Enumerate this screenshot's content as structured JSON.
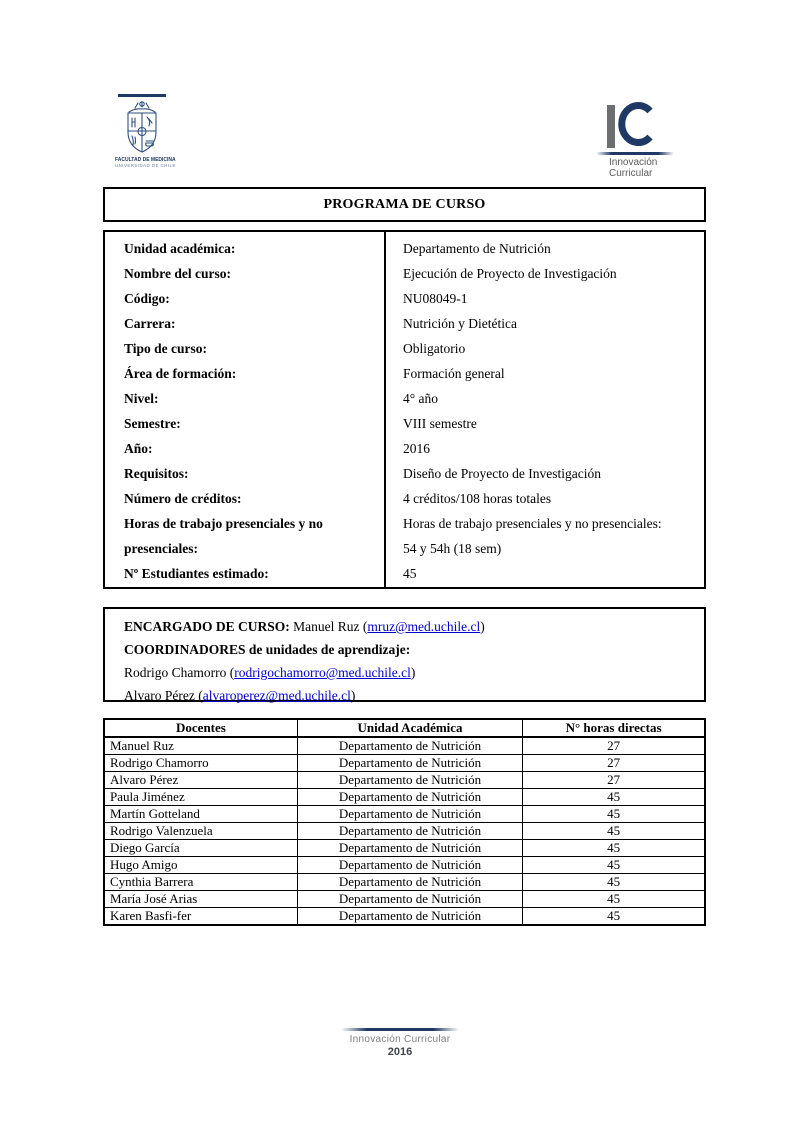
{
  "header": {
    "left_logo": {
      "name": "FACULTAD DE MEDICINA",
      "subname": "UNIVERSIDAD DE CHILE"
    },
    "right_logo": {
      "initial_i": "I",
      "initial_c": "C",
      "label_line1": "Innovación",
      "label_line2": "Curricular"
    }
  },
  "title": "PROGRAMA DE CURSO",
  "course_info": {
    "rows": [
      {
        "label": [
          "Unidad académica:"
        ],
        "value": [
          "Departamento de Nutrición"
        ]
      },
      {
        "label": [
          "Nombre del curso:"
        ],
        "value": [
          "Ejecución de Proyecto de Investigación"
        ]
      },
      {
        "label": [
          "Código:"
        ],
        "value": [
          "NU08049-1"
        ]
      },
      {
        "label": [
          "Carrera:"
        ],
        "value": [
          "Nutrición y Dietética"
        ]
      },
      {
        "label": [
          "Tipo de curso:"
        ],
        "value": [
          "Obligatorio"
        ]
      },
      {
        "label": [
          "Área de formación:"
        ],
        "value": [
          "Formación general"
        ]
      },
      {
        "label": [
          "Nivel:"
        ],
        "value": [
          "4° año"
        ]
      },
      {
        "label": [
          "Semestre:"
        ],
        "value": [
          "VIII semestre"
        ]
      },
      {
        "label": [
          "Año:"
        ],
        "value": [
          "2016"
        ]
      },
      {
        "label": [
          "Requisitos:"
        ],
        "value": [
          "Diseño de Proyecto de Investigación"
        ]
      },
      {
        "label": [
          "Número de créditos:"
        ],
        "value": [
          "4 créditos/108 horas totales"
        ]
      },
      {
        "label": [
          "Horas de trabajo presenciales y no",
          "presenciales:"
        ],
        "value": [
          "Horas de trabajo presenciales y no presenciales:",
          "54 y 54h (18 sem)"
        ]
      },
      {
        "label": [
          "Nº Estudiantes estimado:"
        ],
        "value": [
          "45"
        ]
      }
    ]
  },
  "staff_box": {
    "lines": [
      [
        {
          "text": "ENCARGADO DE CURSO:",
          "bold": true
        },
        {
          "text": " Manuel Ruz ("
        },
        {
          "text": "mruz@med.uchile.cl",
          "link": true
        },
        {
          "text": ")"
        }
      ],
      [
        {
          "text": "COORDINADORES de unidades de aprendizaje:",
          "bold": true
        }
      ],
      [
        {
          "text": "Rodrigo Chamorro ("
        },
        {
          "text": "rodrigochamorro@med.uchile.cl",
          "link": true
        },
        {
          "text": ")"
        }
      ],
      [
        {
          "text": "Alvaro Pérez ("
        },
        {
          "text": "alvaroperez@med.uchile.cl",
          "link": true
        },
        {
          "text": ")"
        }
      ]
    ]
  },
  "docentes_table": {
    "headers": [
      "Docentes",
      "Unidad Académica",
      "N° horas directas"
    ],
    "rows": [
      [
        "Manuel Ruz",
        "Departamento de Nutrición",
        "27"
      ],
      [
        "Rodrigo Chamorro",
        "Departamento de Nutrición",
        "27"
      ],
      [
        "Alvaro Pérez",
        "Departamento de Nutrición",
        "27"
      ],
      [
        "Paula Jiménez",
        "Departamento de Nutrición",
        "45"
      ],
      [
        "Martín Gotteland",
        "Departamento de Nutrición",
        "45"
      ],
      [
        "Rodrigo Valenzuela",
        "Departamento de Nutrición",
        "45"
      ],
      [
        "Diego García",
        "Departamento de Nutrición",
        "45"
      ],
      [
        "Hugo Amigo",
        "Departamento de Nutrición",
        "45"
      ],
      [
        "Cynthia Barrera",
        "Departamento de Nutrición",
        "45"
      ],
      [
        "María José Arias",
        "Departamento de Nutrición",
        "45"
      ],
      [
        "Karen Basfi-fer",
        "Departamento de Nutrición",
        "45"
      ]
    ]
  },
  "footer": {
    "label": "Innovación Curricular",
    "year": "2016"
  },
  "colors": {
    "brand_navy": "#1f3864",
    "logo_gray": "#6d6e71",
    "link_blue": "#0000cc",
    "footer_gray": "#7f7f7f"
  }
}
